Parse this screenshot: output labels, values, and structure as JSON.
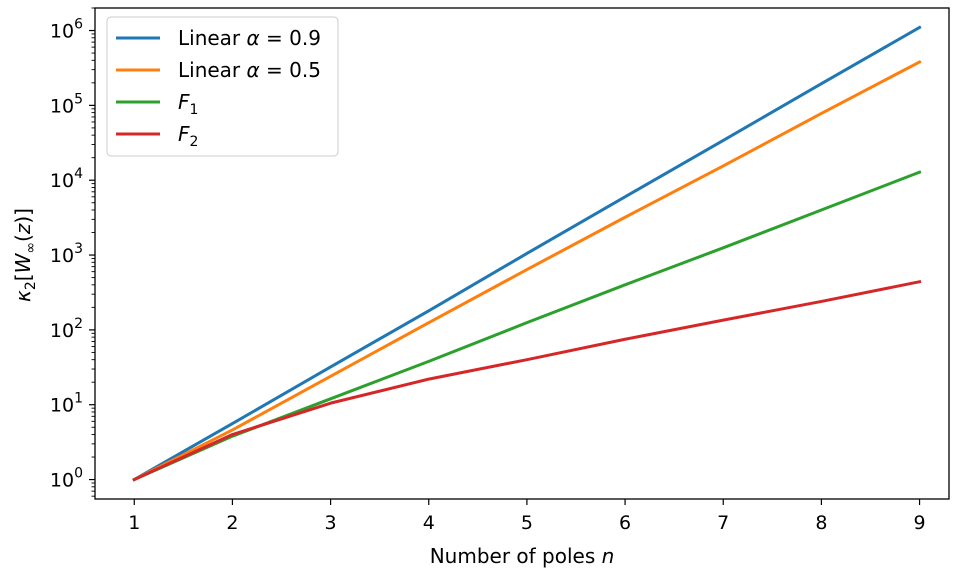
{
  "chart_data": {
    "type": "line",
    "xlabel": "Number of poles n",
    "ylabel": "κ2[W∞(z)]",
    "xlim": [
      0.6,
      9.3
    ],
    "ylim": [
      0.55,
      2000000
    ],
    "yscale": "log",
    "grid": false,
    "legend_position": "top-left",
    "x_ticks": [
      1,
      2,
      3,
      4,
      5,
      6,
      7,
      8,
      9
    ],
    "y_ticks": [
      {
        "value": 1,
        "base": "10",
        "exp": "0"
      },
      {
        "value": 10,
        "base": "10",
        "exp": "1"
      },
      {
        "value": 100,
        "base": "10",
        "exp": "2"
      },
      {
        "value": 1000,
        "base": "10",
        "exp": "3"
      },
      {
        "value": 10000,
        "base": "10",
        "exp": "4"
      },
      {
        "value": 100000,
        "base": "10",
        "exp": "5"
      },
      {
        "value": 1000000,
        "base": "10",
        "exp": "6"
      }
    ],
    "x": [
      1,
      2,
      3,
      4,
      5,
      6,
      7,
      8,
      9
    ],
    "series": [
      {
        "name": "Linear α = 0.9",
        "legend_main": "Linear ",
        "legend_sym": "α",
        "legend_rest": " = 0.9",
        "color": "#1f77b4",
        "values": [
          1,
          5.6,
          32,
          180,
          1050,
          6000,
          34000,
          195000,
          1100000
        ]
      },
      {
        "name": "Linear α = 0.5",
        "legend_main": "Linear ",
        "legend_sym": "α",
        "legend_rest": " = 0.5",
        "color": "#ff7f0e",
        "values": [
          1,
          4.6,
          24,
          125,
          640,
          3200,
          15500,
          78000,
          380000
        ]
      },
      {
        "name": "F1",
        "legend_main": "",
        "legend_sym": "F",
        "legend_sub": "1",
        "legend_rest": "",
        "color": "#2ca02c",
        "values": [
          1,
          3.8,
          12,
          38,
          125,
          400,
          1250,
          4000,
          12800
        ]
      },
      {
        "name": "F2",
        "legend_main": "",
        "legend_sym": "F",
        "legend_sub": "2",
        "legend_rest": "",
        "color": "#d62728",
        "values": [
          1,
          4,
          10.5,
          22,
          40,
          75,
          135,
          240,
          440
        ]
      }
    ]
  }
}
